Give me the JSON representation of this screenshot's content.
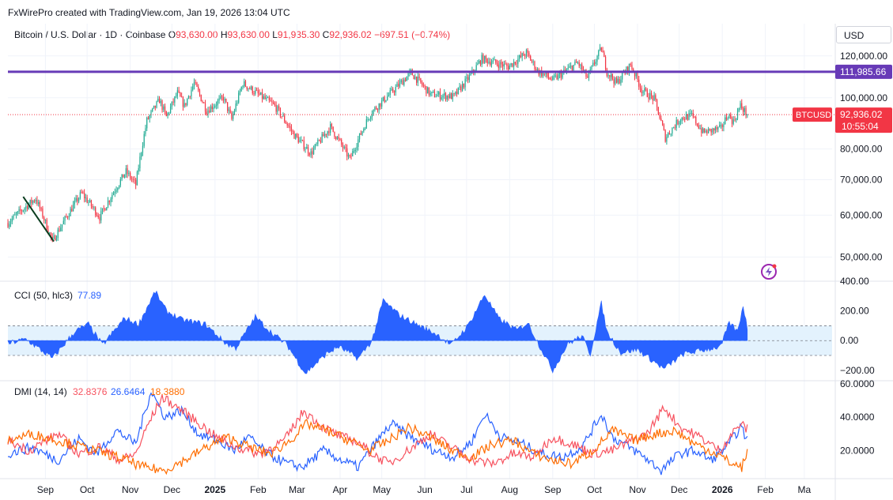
{
  "credit": "FxWirePro created with TradingView.com, Jan 19, 2026 13:04 UTC",
  "symbol": {
    "title": "Bitcoin / U.S. Dollar · 1D · Coinbase",
    "o_label": "O",
    "o": "93,630.00",
    "h_label": "H",
    "h": "93,630.00",
    "l_label": "L",
    "l": "91,935.30",
    "c_label": "C",
    "c": "92,936.02",
    "change": "−697.51 (−0.74%)"
  },
  "currency": "USD",
  "colors": {
    "up": "#22ab94",
    "down": "#f23645",
    "hline": "#673ab7",
    "cci": "#2962ff",
    "cci_band": "#e3f2fd",
    "dmi_plus": "#2962ff",
    "dmi_minus": "#f7525f",
    "adx": "#ff6d00",
    "price_tag": "#f23645"
  },
  "icons": {
    "watermark": "tradingview-bolt-icon"
  },
  "chart_data": [
    {
      "type": "candlestick",
      "title": "Bitcoin / U.S. Dollar · 1D · Coinbase",
      "y_ticks": [
        "120,000.00",
        "100,000.00",
        "80,000.00",
        "70,000.00",
        "60,000.00",
        "50,000.00"
      ],
      "y_tick_values": [
        120000,
        100000,
        80000,
        70000,
        60000,
        50000
      ],
      "ylim": [
        45000,
        128000
      ],
      "scale": "log",
      "x_ticks": [
        "Sep",
        "Oct",
        "Nov",
        "Dec",
        "2025",
        "Feb",
        "Mar",
        "Apr",
        "May",
        "Jun",
        "Jul",
        "Aug",
        "Sep",
        "Oct",
        "Nov",
        "Dec",
        "2026",
        "Feb",
        "Ma"
      ],
      "x_tick_dates": [
        "2024-09-01",
        "2024-10-01",
        "2024-11-01",
        "2024-12-01",
        "2025-01-01",
        "2025-02-01",
        "2025-03-01",
        "2025-04-01",
        "2025-05-01",
        "2025-06-01",
        "2025-07-01",
        "2025-08-01",
        "2025-09-01",
        "2025-10-01",
        "2025-11-01",
        "2025-12-01",
        "2026-01-01",
        "2026-02-01",
        "2026-03-01"
      ],
      "x_range": [
        "2024-08-05",
        "2026-03-21"
      ],
      "horizontal_line": {
        "value": 111985.66,
        "label": "111,985.66"
      },
      "last_price": {
        "symbol": "BTCUSD",
        "value": 92936.02,
        "label": "92,936.02",
        "countdown": "10:55:04"
      },
      "trend_line": {
        "start": [
          "2024-08-16",
          65000
        ],
        "end": [
          "2024-09-07",
          53500
        ]
      },
      "anchors": [
        [
          "2024-08-05",
          58000
        ],
        [
          "2024-08-14",
          61000
        ],
        [
          "2024-08-25",
          64500
        ],
        [
          "2024-09-06",
          53500
        ],
        [
          "2024-09-27",
          66000
        ],
        [
          "2024-10-10",
          59500
        ],
        [
          "2024-10-29",
          72500
        ],
        [
          "2024-11-05",
          68500
        ],
        [
          "2024-11-13",
          90500
        ],
        [
          "2024-11-22",
          99000
        ],
        [
          "2024-11-27",
          92000
        ],
        [
          "2024-12-05",
          102000
        ],
        [
          "2024-12-10",
          96500
        ],
        [
          "2024-12-17",
          106500
        ],
        [
          "2024-12-26",
          94500
        ],
        [
          "2025-01-07",
          100000
        ],
        [
          "2025-01-13",
          91000
        ],
        [
          "2025-01-21",
          106500
        ],
        [
          "2025-02-01",
          101500
        ],
        [
          "2025-02-13",
          96500
        ],
        [
          "2025-02-27",
          85000
        ],
        [
          "2025-03-11",
          78500
        ],
        [
          "2025-03-25",
          88000
        ],
        [
          "2025-04-08",
          76500
        ],
        [
          "2025-04-23",
          93500
        ],
        [
          "2025-05-09",
          103000
        ],
        [
          "2025-05-22",
          111500
        ],
        [
          "2025-06-05",
          101500
        ],
        [
          "2025-06-22",
          100500
        ],
        [
          "2025-07-03",
          109500
        ],
        [
          "2025-07-12",
          118500
        ],
        [
          "2025-07-31",
          114500
        ],
        [
          "2025-08-13",
          121500
        ],
        [
          "2025-08-21",
          112500
        ],
        [
          "2025-09-01",
          108000
        ],
        [
          "2025-09-19",
          116500
        ],
        [
          "2025-09-26",
          109000
        ],
        [
          "2025-10-06",
          124000
        ],
        [
          "2025-10-10",
          112000
        ],
        [
          "2025-10-17",
          106500
        ],
        [
          "2025-10-27",
          115500
        ],
        [
          "2025-11-04",
          103500
        ],
        [
          "2025-11-13",
          99500
        ],
        [
          "2025-11-21",
          84000
        ],
        [
          "2025-12-02",
          91500
        ],
        [
          "2025-12-10",
          92500
        ],
        [
          "2025-12-18",
          86000
        ],
        [
          "2025-12-31",
          87500
        ],
        [
          "2026-01-05",
          93000
        ],
        [
          "2026-01-09",
          90000
        ],
        [
          "2026-01-14",
          96500
        ],
        [
          "2026-01-19",
          92936
        ]
      ]
    },
    {
      "type": "area",
      "title": "CCI (50, hlc3)",
      "value_label": "77.89",
      "y_ticks": [
        "400.00",
        "200.00",
        "0.00",
        "−200.00"
      ],
      "y_tick_values": [
        400,
        200,
        0,
        -200
      ],
      "ylim": [
        -270,
        400
      ],
      "bands": [
        100,
        -100
      ],
      "anchors": [
        [
          "2024-08-05",
          -20
        ],
        [
          "2024-08-18",
          10
        ],
        [
          "2024-09-06",
          -120
        ],
        [
          "2024-09-22",
          60
        ],
        [
          "2024-10-02",
          110
        ],
        [
          "2024-10-12",
          -30
        ],
        [
          "2024-10-28",
          150
        ],
        [
          "2024-11-07",
          110
        ],
        [
          "2024-11-19",
          330
        ],
        [
          "2024-11-27",
          200
        ],
        [
          "2024-12-08",
          140
        ],
        [
          "2024-12-25",
          110
        ],
        [
          "2025-01-09",
          -20
        ],
        [
          "2025-01-16",
          -50
        ],
        [
          "2025-01-30",
          160
        ],
        [
          "2025-02-10",
          60
        ],
        [
          "2025-02-22",
          -30
        ],
        [
          "2025-03-07",
          -220
        ],
        [
          "2025-03-22",
          -90
        ],
        [
          "2025-03-31",
          -40
        ],
        [
          "2025-04-14",
          -120
        ],
        [
          "2025-04-24",
          0
        ],
        [
          "2025-05-02",
          270
        ],
        [
          "2025-05-14",
          170
        ],
        [
          "2025-05-28",
          100
        ],
        [
          "2025-06-10",
          40
        ],
        [
          "2025-06-20",
          -30
        ],
        [
          "2025-07-02",
          100
        ],
        [
          "2025-07-14",
          310
        ],
        [
          "2025-07-24",
          150
        ],
        [
          "2025-08-06",
          70
        ],
        [
          "2025-08-14",
          120
        ],
        [
          "2025-08-24",
          -60
        ],
        [
          "2025-09-01",
          -200
        ],
        [
          "2025-09-12",
          -20
        ],
        [
          "2025-09-22",
          30
        ],
        [
          "2025-09-28",
          -90
        ],
        [
          "2025-10-06",
          250
        ],
        [
          "2025-10-10",
          60
        ],
        [
          "2025-10-20",
          -80
        ],
        [
          "2025-11-01",
          -60
        ],
        [
          "2025-11-20",
          -190
        ],
        [
          "2025-12-04",
          -90
        ],
        [
          "2025-12-20",
          -60
        ],
        [
          "2025-12-31",
          -40
        ],
        [
          "2026-01-06",
          120
        ],
        [
          "2026-01-12",
          60
        ],
        [
          "2026-01-16",
          240
        ],
        [
          "2026-01-19",
          78
        ]
      ]
    },
    {
      "type": "line",
      "title": "DMI (14, 14)",
      "y_ticks": [
        "60.0000",
        "40.0000",
        "20.0000"
      ],
      "y_tick_values": [
        60,
        40,
        20
      ],
      "ylim": [
        3,
        62
      ],
      "series": [
        {
          "name": "",
          "legend_value": "26.6464",
          "color": "#2962ff",
          "anchors": [
            [
              "2024-08-05",
              18
            ],
            [
              "2024-08-22",
              22
            ],
            [
              "2024-09-10",
              14
            ],
            [
              "2024-09-25",
              27
            ],
            [
              "2024-10-08",
              18
            ],
            [
              "2024-10-22",
              32
            ],
            [
              "2024-11-05",
              24
            ],
            [
              "2024-11-16",
              56
            ],
            [
              "2024-11-26",
              40
            ],
            [
              "2024-12-08",
              44
            ],
            [
              "2024-12-20",
              30
            ],
            [
              "2025-01-02",
              26
            ],
            [
              "2025-01-15",
              20
            ],
            [
              "2025-01-25",
              28
            ],
            [
              "2025-02-08",
              18
            ],
            [
              "2025-02-22",
              12
            ],
            [
              "2025-03-05",
              10
            ],
            [
              "2025-03-20",
              20
            ],
            [
              "2025-04-02",
              14
            ],
            [
              "2025-04-14",
              10
            ],
            [
              "2025-04-26",
              24
            ],
            [
              "2025-05-08",
              36
            ],
            [
              "2025-05-22",
              28
            ],
            [
              "2025-06-08",
              20
            ],
            [
              "2025-06-22",
              16
            ],
            [
              "2025-07-05",
              26
            ],
            [
              "2025-07-14",
              42
            ],
            [
              "2025-07-26",
              28
            ],
            [
              "2025-08-10",
              24
            ],
            [
              "2025-08-24",
              18
            ],
            [
              "2025-09-08",
              16
            ],
            [
              "2025-09-22",
              22
            ],
            [
              "2025-10-06",
              42
            ],
            [
              "2025-10-14",
              28
            ],
            [
              "2025-10-26",
              22
            ],
            [
              "2025-11-06",
              16
            ],
            [
              "2025-11-18",
              8
            ],
            [
              "2025-12-01",
              18
            ],
            [
              "2025-12-12",
              20
            ],
            [
              "2025-12-24",
              14
            ],
            [
              "2026-01-06",
              24
            ],
            [
              "2026-01-14",
              34
            ],
            [
              "2026-01-19",
              26.6
            ]
          ]
        },
        {
          "name": "",
          "legend_value": "32.8376",
          "color": "#f7525f",
          "anchors": [
            [
              "2024-08-05",
              26
            ],
            [
              "2024-08-20",
              20
            ],
            [
              "2024-09-10",
              30
            ],
            [
              "2024-09-25",
              18
            ],
            [
              "2024-10-10",
              22
            ],
            [
              "2024-10-25",
              14
            ],
            [
              "2024-11-05",
              18
            ],
            [
              "2024-11-14",
              36
            ],
            [
              "2024-11-24",
              52
            ],
            [
              "2024-12-05",
              46
            ],
            [
              "2024-12-18",
              38
            ],
            [
              "2025-01-02",
              28
            ],
            [
              "2025-01-16",
              22
            ],
            [
              "2025-02-02",
              18
            ],
            [
              "2025-02-20",
              26
            ],
            [
              "2025-03-06",
              44
            ],
            [
              "2025-03-20",
              34
            ],
            [
              "2025-04-02",
              28
            ],
            [
              "2025-04-12",
              26
            ],
            [
              "2025-04-24",
              18
            ],
            [
              "2025-05-06",
              12
            ],
            [
              "2025-05-20",
              20
            ],
            [
              "2025-06-05",
              30
            ],
            [
              "2025-06-20",
              22
            ],
            [
              "2025-07-06",
              14
            ],
            [
              "2025-07-20",
              12
            ],
            [
              "2025-08-04",
              18
            ],
            [
              "2025-08-18",
              16
            ],
            [
              "2025-09-01",
              28
            ],
            [
              "2025-09-15",
              24
            ],
            [
              "2025-09-30",
              18
            ],
            [
              "2025-10-14",
              20
            ],
            [
              "2025-10-28",
              26
            ],
            [
              "2025-11-08",
              30
            ],
            [
              "2025-11-20",
              46
            ],
            [
              "2025-12-02",
              34
            ],
            [
              "2025-12-16",
              28
            ],
            [
              "2025-12-30",
              20
            ],
            [
              "2026-01-08",
              30
            ],
            [
              "2026-01-14",
              36
            ],
            [
              "2026-01-19",
              32.8
            ]
          ]
        },
        {
          "name": "",
          "legend_value": "18.3880",
          "color": "#ff6d00",
          "anchors": [
            [
              "2024-08-05",
              26
            ],
            [
              "2024-08-22",
              30
            ],
            [
              "2024-09-10",
              26
            ],
            [
              "2024-09-28",
              22
            ],
            [
              "2024-10-15",
              18
            ],
            [
              "2024-10-30",
              14
            ],
            [
              "2024-11-10",
              10
            ],
            [
              "2024-11-25",
              8
            ],
            [
              "2024-12-10",
              14
            ],
            [
              "2024-12-26",
              22
            ],
            [
              "2025-01-10",
              28
            ],
            [
              "2025-01-26",
              22
            ],
            [
              "2025-02-10",
              18
            ],
            [
              "2025-02-24",
              26
            ],
            [
              "2025-03-08",
              36
            ],
            [
              "2025-03-22",
              32
            ],
            [
              "2025-04-08",
              26
            ],
            [
              "2025-04-22",
              20
            ],
            [
              "2025-05-06",
              26
            ],
            [
              "2025-05-20",
              34
            ],
            [
              "2025-06-05",
              28
            ],
            [
              "2025-06-20",
              20
            ],
            [
              "2025-07-05",
              16
            ],
            [
              "2025-07-20",
              24
            ],
            [
              "2025-08-04",
              26
            ],
            [
              "2025-08-18",
              18
            ],
            [
              "2025-09-01",
              14
            ],
            [
              "2025-09-15",
              12
            ],
            [
              "2025-09-30",
              20
            ],
            [
              "2025-10-14",
              32
            ],
            [
              "2025-10-30",
              26
            ],
            [
              "2025-11-14",
              30
            ],
            [
              "2025-11-28",
              32
            ],
            [
              "2025-12-12",
              24
            ],
            [
              "2025-12-28",
              18
            ],
            [
              "2026-01-08",
              12
            ],
            [
              "2026-01-15",
              10
            ],
            [
              "2026-01-19",
              18.4
            ]
          ]
        }
      ]
    }
  ]
}
